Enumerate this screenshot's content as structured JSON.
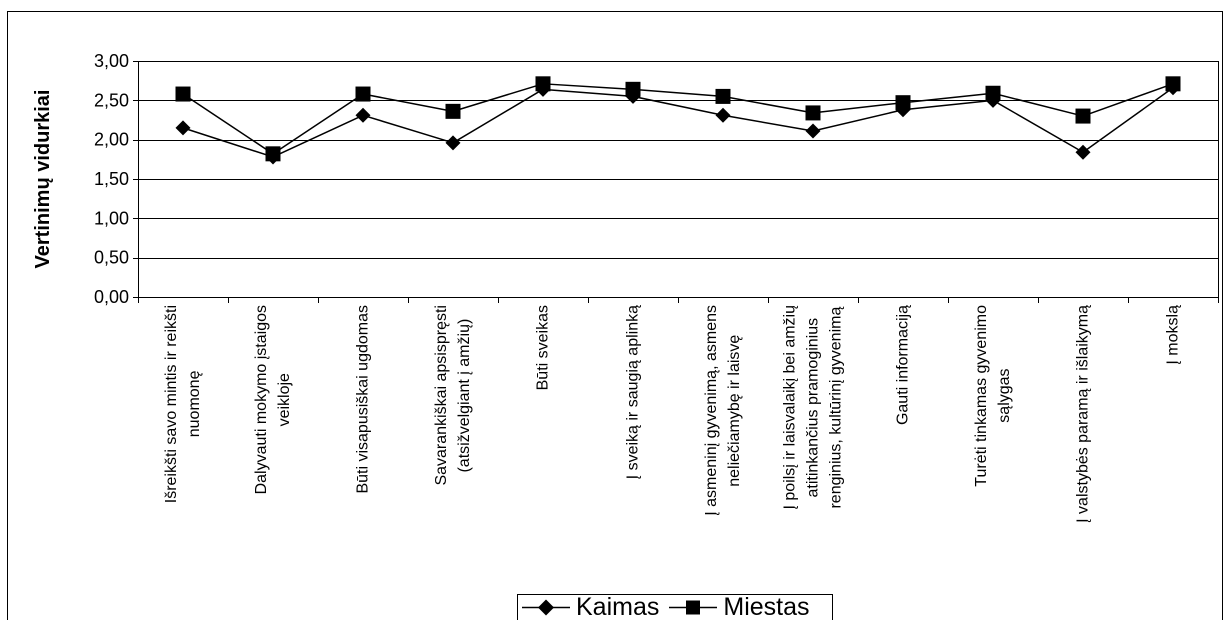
{
  "chart_data": {
    "type": "line",
    "ylabel": "Vertinimų vidurkiai",
    "ylim": [
      0,
      3
    ],
    "yticks": [
      0,
      0.5,
      1,
      1.5,
      2,
      2.5,
      3
    ],
    "ytick_labels": [
      "0,00",
      "0,50",
      "1,00",
      "1,50",
      "2,00",
      "2,50",
      "3,00"
    ],
    "categories": [
      "Išreikšti savo mintis ir reikšti\nnuomonę",
      "Dalyvauti mokymo įstaigos\nveikloje",
      "Būti visapusiškai ugdomas",
      "Savarankiškai apsispręsti\n(atsižvelgiant į amžių)",
      "Būti sveikas",
      "Į sveiką ir saugią aplinką",
      "Į asmeninį gyvenimą, asmens\nneliečiamybę ir laisvę",
      "Į poilsį ir laisvalaikį bei amžių\natitinkančius pramoginius\nrenginius, kultūrinį gyvenimą",
      "Gauti informaciją",
      "Turėti tinkamas gyvenimo\nsąlygas",
      "Į valstybės paramą ir išlaikymą",
      "Į mokslą"
    ],
    "series": [
      {
        "name": "Kaimas",
        "marker": "diamond",
        "color": "#000000",
        "values": [
          2.15,
          1.78,
          2.31,
          1.96,
          2.64,
          2.55,
          2.31,
          2.11,
          2.38,
          2.5,
          1.84,
          2.66
        ]
      },
      {
        "name": "Miestas",
        "marker": "square",
        "color": "#000000",
        "values": [
          2.58,
          1.82,
          2.58,
          2.36,
          2.71,
          2.64,
          2.55,
          2.34,
          2.47,
          2.59,
          2.3,
          2.71
        ]
      }
    ],
    "grid": true,
    "legend": "bottom"
  }
}
